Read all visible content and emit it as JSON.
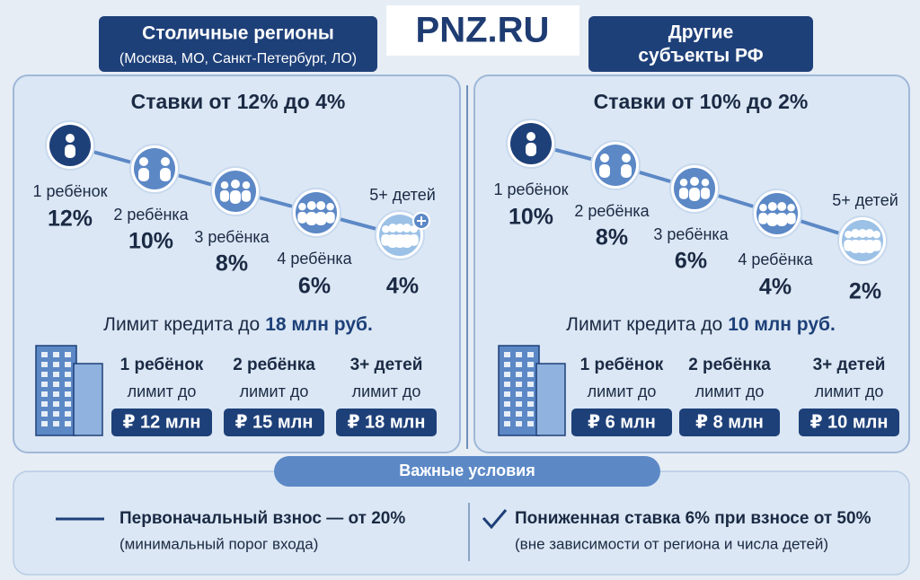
{
  "logo": "PNZ.RU",
  "panels": [
    {
      "title": [
        "Столичные регионы"
      ],
      "subtitle": "(Москва, МО, Санкт-Петербург, ЛО)",
      "rates_heading": "Ставки от 12% до 4%",
      "steps": [
        {
          "label": "1 ребёнок",
          "rate": "12%"
        },
        {
          "label": "2 ребёнка",
          "rate": "10%"
        },
        {
          "label": "3 ребёнка",
          "rate": "8%"
        },
        {
          "label": "4 ребёнка",
          "rate": "6%"
        },
        {
          "label": "5+ детей",
          "rate": "4%"
        }
      ],
      "limit_text": "Лимит кредита до",
      "limit_value": "18 млн руб.",
      "limits": [
        {
          "label": "1 ребёнок",
          "sub": "лимит до",
          "amount": "₽ 12 млн"
        },
        {
          "label": "2 ребёнка",
          "sub": "лимит до",
          "amount": "₽ 15 млн"
        },
        {
          "label": "3+ детей",
          "sub": "лимит до",
          "amount": "₽ 18 млн"
        }
      ]
    },
    {
      "title": [
        "Другие",
        "субъекты РФ"
      ],
      "rates_heading": "Ставки от 10% до 2%",
      "steps": [
        {
          "label": "1 ребёнок",
          "rate": "10%"
        },
        {
          "label": "2 ребёнка",
          "rate": "8%"
        },
        {
          "label": "3 ребёнка",
          "rate": "6%"
        },
        {
          "label": "4 ребёнка",
          "rate": "4%"
        },
        {
          "label": "5+ детей",
          "rate": "2%"
        }
      ],
      "limit_text": "Лимит кредита до",
      "limit_value": "10 млн руб.",
      "limits": [
        {
          "label": "1 ребёнок",
          "sub": "лимит до",
          "amount": "₽ 6 млн"
        },
        {
          "label": "2 ребёнка",
          "sub": "лимит до",
          "amount": "₽ 8 млн"
        },
        {
          "label": "3+ детей",
          "sub": "лимит до",
          "amount": "₽ 10 млн"
        }
      ]
    }
  ],
  "conditions": {
    "heading": "Важные условия",
    "items": [
      {
        "title": "Первоначальный взнос — от 20%",
        "note": "(минимальный порог входа)"
      },
      {
        "title": "Пониженная ставка 6% при взносе от 50%",
        "note": "(вне зависимости от региона и числа детей)"
      }
    ]
  }
}
